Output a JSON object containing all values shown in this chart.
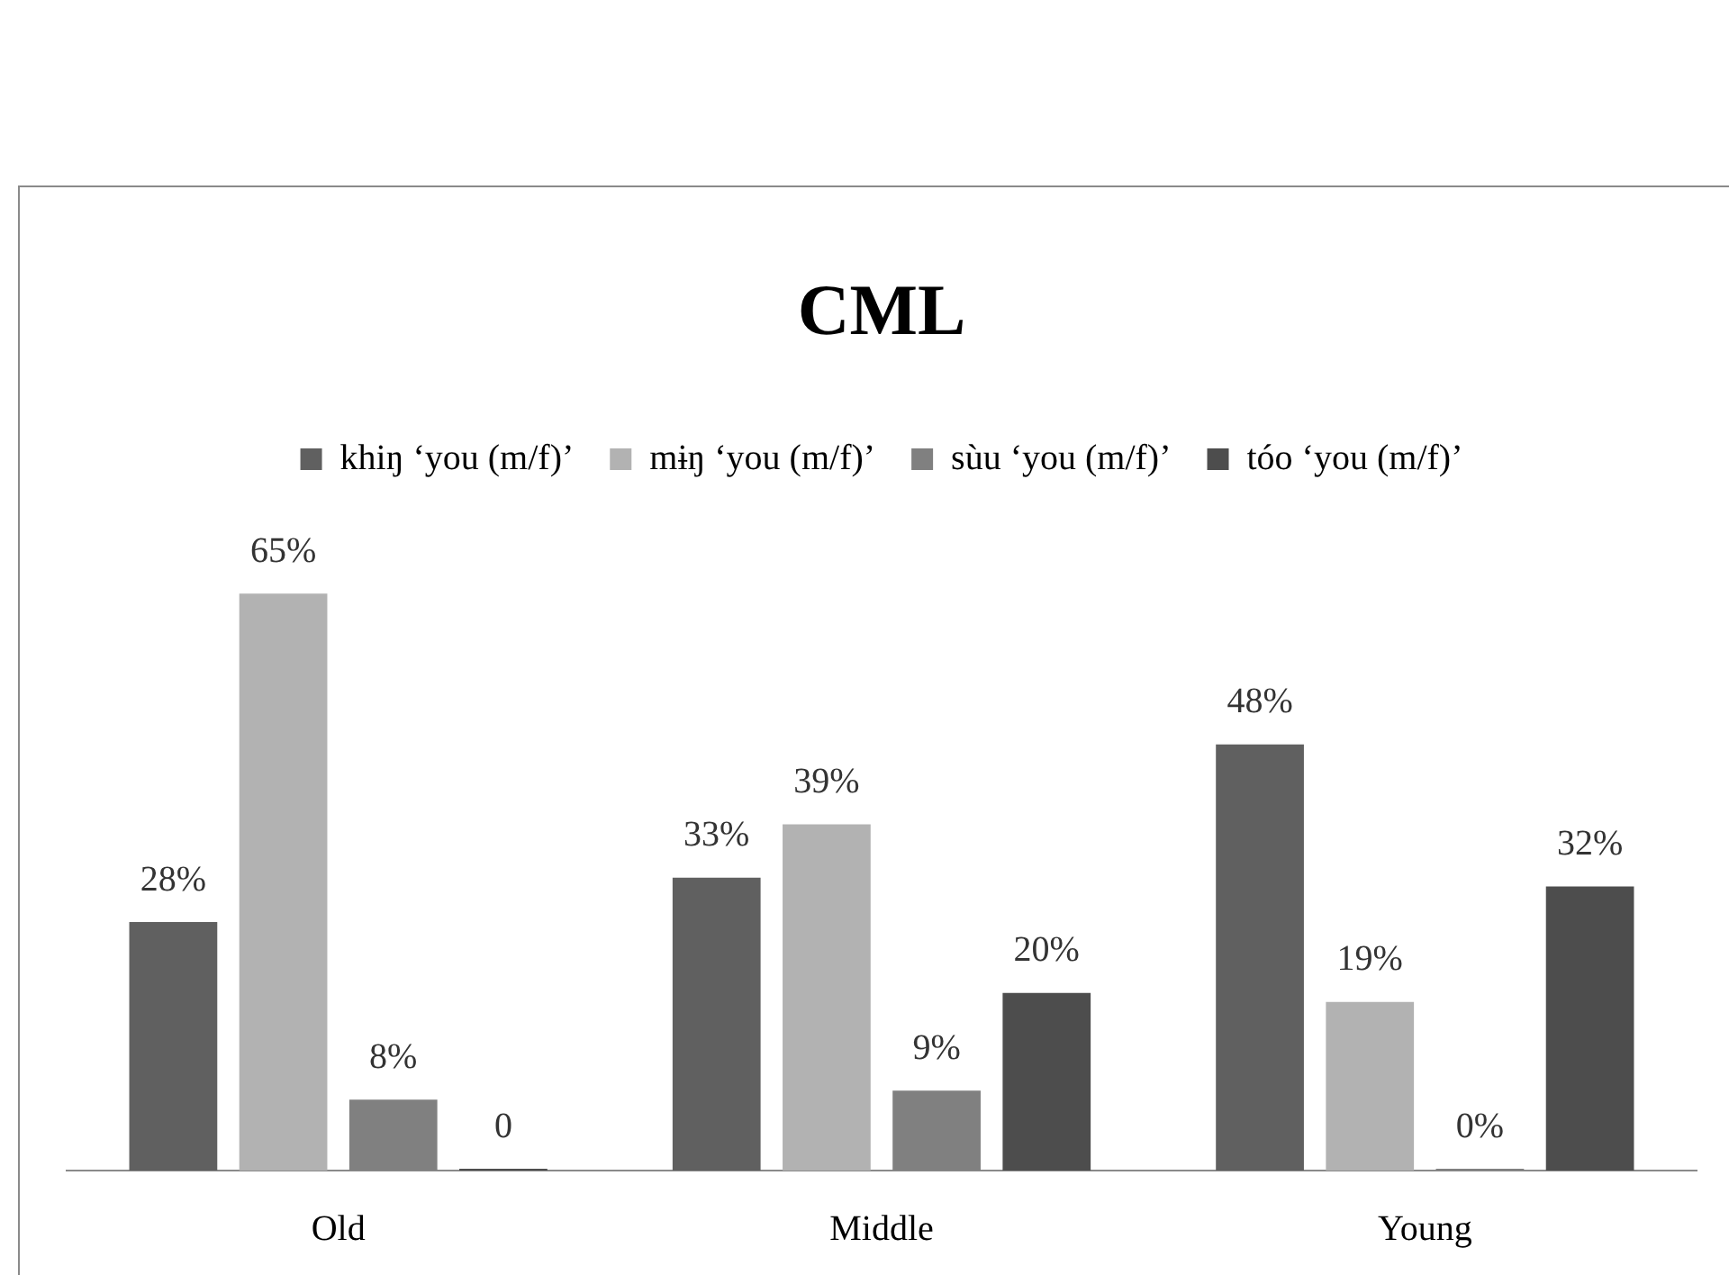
{
  "chart_data": {
    "type": "bar",
    "title": "CML",
    "categories": [
      "Old",
      "Middle",
      "Young"
    ],
    "series": [
      {
        "name": "khiŋ ‘you (m/f)’",
        "color": "#606060",
        "values": [
          28,
          33,
          48
        ],
        "value_labels": [
          "28%",
          "33%",
          "48%"
        ]
      },
      {
        "name": "mɨŋ ‘you (m/f)’",
        "color": "#b2b2b2",
        "values": [
          65,
          39,
          19
        ],
        "value_labels": [
          "65%",
          "39%",
          "19%"
        ]
      },
      {
        "name": "sùu ‘you (m/f)’",
        "color": "#808080",
        "values": [
          8,
          9,
          0
        ],
        "value_labels": [
          "8%",
          "9%",
          "0%"
        ]
      },
      {
        "name": "tóo ‘you (m/f)’",
        "color": "#4d4d4d",
        "values": [
          0,
          20,
          32
        ],
        "value_labels": [
          "0",
          "20%",
          "32%"
        ]
      }
    ],
    "legend": "top"
  }
}
